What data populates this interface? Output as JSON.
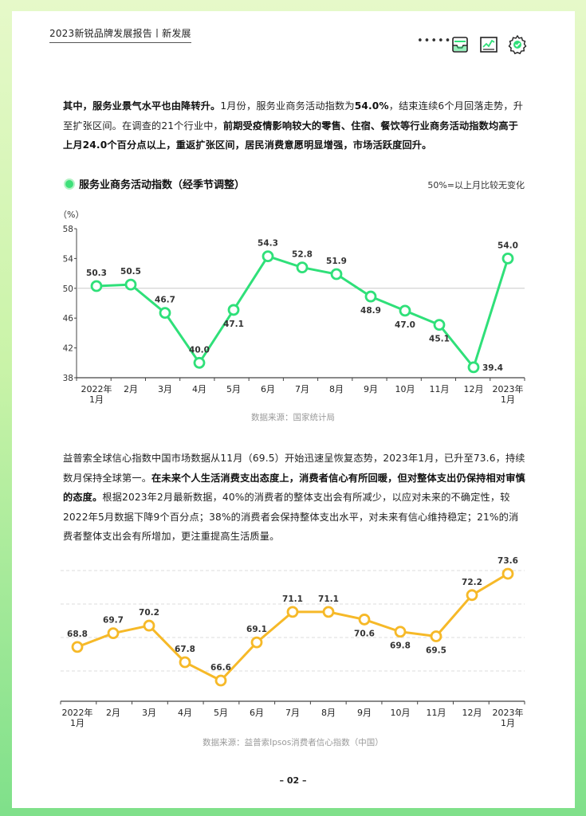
{
  "header": {
    "title": "2023新锐品牌发展报告丨新发展",
    "dots": "••••••"
  },
  "paragraph1": {
    "s1": "其中，服务业景气水平也由降转升。",
    "s2": "1月份，服务业商务活动指数为",
    "s3": "54.0%",
    "s4": "，结束连续6个月回落走势，升至扩张区间。在调查的21个行业中，",
    "s5": "前期受疫情影响较大的零售、住宿、餐饮等行业商务活动指数均高于上月24.0个百分点以上，重返扩张区间，居民消费意愿明显增强，市场活跃度回升。"
  },
  "chart1_header": {
    "title": "服务业商务活动指数（经季节调整）",
    "note": "50%=以上月比较无变化",
    "unit": "（%）"
  },
  "source1": "数据来源：国家统计局",
  "paragraph2": {
    "s1": "益普索全球信心指数中国市场数据从11月（69.5）开始迅速呈恢复态势，2023年1月，已升至73.6，持续数月保持全球第一。",
    "s2": "在未来个人生活消费支出态度上，消费者信心有所回暖，但对整体支出仍保持相对审慎的态度。",
    "s3": "根据2023年2月最新数据，40%的消费者的整体支出会有所减少，以应对未来的不确定性，较2022年5月数据下降9个百分点；38%的消费者会保持整体支出水平，对未来有信心维持稳定；21%的消费者整体支出会有所增加，更注重提高生活质量。"
  },
  "source2": "数据来源：益普索Ipsos消费者信心指数（中国）",
  "page_number": "– 02 –",
  "chart_data": [
    {
      "type": "line",
      "title": "服务业商务活动指数（经季节调整）",
      "ylabel": "（%）",
      "categories": [
        [
          "2022年",
          "1月"
        ],
        [
          "2月"
        ],
        [
          "3月"
        ],
        [
          "4月"
        ],
        [
          "5月"
        ],
        [
          "6月"
        ],
        [
          "7月"
        ],
        [
          "8月"
        ],
        [
          "9月"
        ],
        [
          "10月"
        ],
        [
          "11月"
        ],
        [
          "12月"
        ],
        [
          "2023年",
          "1月"
        ]
      ],
      "values": [
        50.3,
        50.5,
        46.7,
        40.0,
        47.1,
        54.3,
        52.8,
        51.9,
        48.9,
        47.0,
        45.1,
        39.4,
        54.0
      ],
      "labels": [
        "50.3",
        "50.5",
        "46.7",
        "40.0",
        "47.1",
        "54.3",
        "52.8",
        "51.9",
        "48.9",
        "47.0",
        "45.1",
        "39.4",
        "54.0"
      ],
      "label_position": [
        "above",
        "above",
        "above",
        "above",
        "below",
        "above",
        "above",
        "above",
        "below",
        "below",
        "below",
        "right",
        "above"
      ],
      "ylim": [
        38,
        58
      ],
      "yticks": [
        38,
        42,
        46,
        50,
        54,
        58
      ],
      "reference_line": 50,
      "color": "#2fe079",
      "grid": false
    },
    {
      "type": "line",
      "categories": [
        [
          "2022年",
          "1月"
        ],
        [
          "2月"
        ],
        [
          "3月"
        ],
        [
          "4月"
        ],
        [
          "5月"
        ],
        [
          "6月"
        ],
        [
          "7月"
        ],
        [
          "8月"
        ],
        [
          "9月"
        ],
        [
          "10月"
        ],
        [
          "11月"
        ],
        [
          "12月"
        ],
        [
          "2023年",
          "1月"
        ]
      ],
      "values": [
        68.8,
        69.7,
        70.2,
        67.8,
        66.6,
        69.1,
        71.1,
        71.1,
        70.6,
        69.8,
        69.5,
        72.2,
        73.6
      ],
      "labels": [
        "68.8",
        "69.7",
        "70.2",
        "67.8",
        "66.6",
        "69.1",
        "71.1",
        "71.1",
        "70.6",
        "69.8",
        "69.5",
        "72.2",
        "73.6"
      ],
      "label_position": [
        "above",
        "above",
        "above",
        "above",
        "above",
        "above",
        "above",
        "above",
        "below",
        "below",
        "below",
        "above",
        "above"
      ],
      "color": "#f6b928",
      "grid": true
    }
  ]
}
